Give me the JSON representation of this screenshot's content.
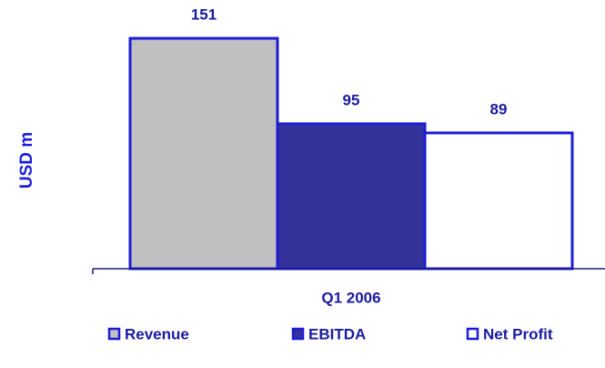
{
  "chart_data": {
    "type": "bar",
    "y_label": "USD m",
    "categories": [
      "Q1 2006"
    ],
    "series": [
      {
        "name": "Revenue",
        "color": "#c0c0c0",
        "values": [
          151
        ]
      },
      {
        "name": "EBITDA",
        "color": "#333399",
        "values": [
          95
        ]
      },
      {
        "name": "Net Profit",
        "color": "#ffffff",
        "values": [
          89
        ]
      }
    ],
    "edge_color": "#1c1cd8",
    "ylim": [
      0,
      160
    ],
    "yticks": [],
    "grid": false,
    "legend": "bottom"
  }
}
